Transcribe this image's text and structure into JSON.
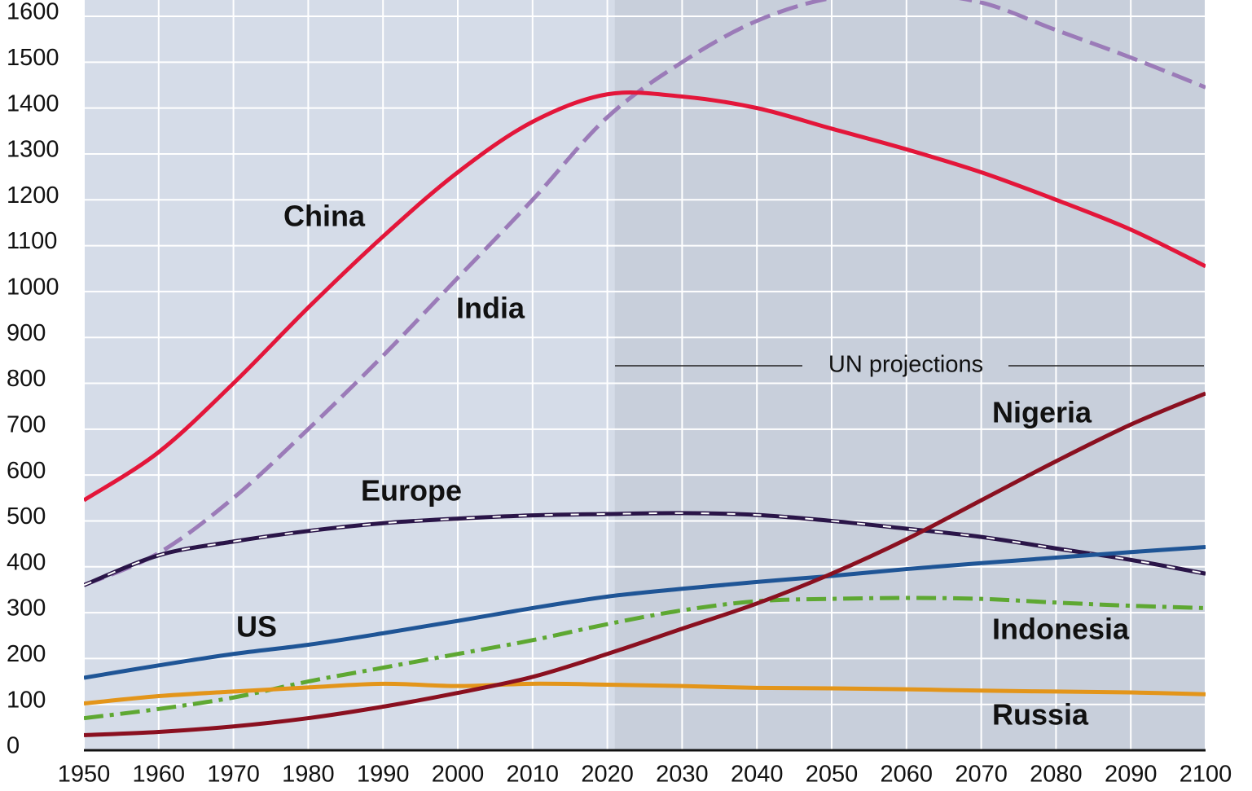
{
  "chart_data": {
    "type": "line",
    "annotation": "UN projections",
    "projection_start": 2021,
    "x": [
      1950,
      1960,
      1970,
      1980,
      1990,
      2000,
      2010,
      2020,
      2030,
      2040,
      2050,
      2060,
      2070,
      2080,
      2090,
      2100
    ],
    "xlim": [
      1950,
      2100
    ],
    "xticks": [
      1950,
      1960,
      1970,
      1980,
      1990,
      2000,
      2010,
      2020,
      2030,
      2040,
      2050,
      2060,
      2070,
      2080,
      2090,
      2100
    ],
    "ylim": [
      0,
      1600
    ],
    "yticks": [
      0,
      100,
      200,
      300,
      400,
      500,
      600,
      700,
      800,
      900,
      1000,
      1100,
      1200,
      1300,
      1400,
      1500,
      1600
    ],
    "grid": true,
    "series": [
      {
        "name": "India",
        "color": "#9b7bb8",
        "style": "dashed",
        "values": [
          360,
          430,
          550,
          700,
          860,
          1030,
          1200,
          1380,
          1500,
          1590,
          1640,
          1650,
          1630,
          1570,
          1510,
          1445
        ]
      },
      {
        "name": "China",
        "color": "#e3163a",
        "style": "solid",
        "values": [
          545,
          650,
          800,
          965,
          1120,
          1260,
          1370,
          1430,
          1425,
          1400,
          1355,
          1310,
          1260,
          1200,
          1135,
          1055
        ]
      },
      {
        "name": "Europe",
        "color": "#2a1548",
        "style": "dashed-white",
        "values": [
          360,
          425,
          455,
          478,
          495,
          505,
          512,
          515,
          517,
          513,
          500,
          483,
          465,
          440,
          415,
          385
        ]
      },
      {
        "name": "US",
        "color": "#1f5596",
        "style": "solid",
        "values": [
          158,
          185,
          210,
          230,
          255,
          282,
          310,
          335,
          352,
          367,
          380,
          395,
          408,
          420,
          432,
          443
        ]
      },
      {
        "name": "Indonesia",
        "color": "#5ea832",
        "style": "dashdot",
        "values": [
          70,
          90,
          115,
          150,
          180,
          210,
          240,
          275,
          305,
          325,
          330,
          332,
          330,
          322,
          315,
          310
        ]
      },
      {
        "name": "Russia",
        "color": "#e3951a",
        "style": "solid",
        "values": [
          102,
          118,
          128,
          137,
          145,
          140,
          145,
          143,
          140,
          136,
          135,
          133,
          130,
          128,
          126,
          122
        ]
      },
      {
        "name": "Nigeria",
        "color": "#8a1020",
        "style": "solid",
        "values": [
          33,
          40,
          52,
          70,
          95,
          125,
          160,
          210,
          265,
          320,
          385,
          460,
          545,
          630,
          710,
          778
        ]
      }
    ]
  }
}
